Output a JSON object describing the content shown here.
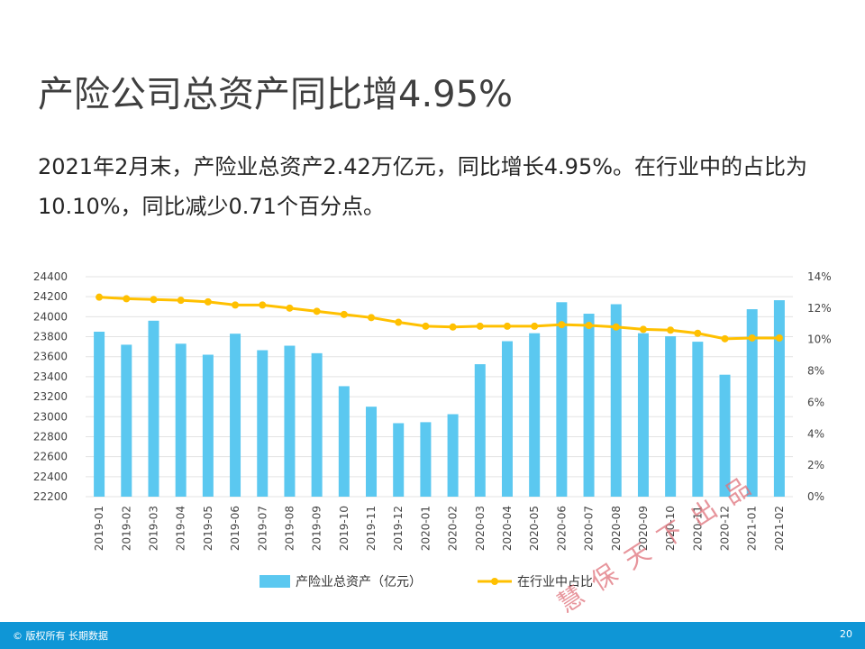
{
  "title": "产险公司总资产同比增4.95%",
  "paragraph": "2021年2月末，产险业总资产2.42万亿元，同比增长4.95%。在行业中的占比为10.10%，同比减少0.71个百分点。",
  "chart_data": {
    "type": "bar",
    "categories": [
      "2019-01",
      "2019-02",
      "2019-03",
      "2019-04",
      "2019-05",
      "2019-06",
      "2019-07",
      "2019-08",
      "2019-09",
      "2019-10",
      "2019-11",
      "2019-12",
      "2020-01",
      "2020-02",
      "2020-03",
      "2020-04",
      "2020-05",
      "2020-06",
      "2020-07",
      "2020-08",
      "2020-09",
      "2020-10",
      "2020-11",
      "2020-12",
      "2021-01",
      "2021-02"
    ],
    "series": [
      {
        "name": "产险业总资产（亿元）",
        "type": "bar",
        "axis": "left",
        "color": "#5bc8f0",
        "values": [
          23850,
          23720,
          23960,
          23730,
          23620,
          23830,
          23665,
          23710,
          23635,
          23305,
          23100,
          22935,
          22945,
          23025,
          23525,
          23755,
          23835,
          24145,
          24030,
          24125,
          23835,
          23805,
          23750,
          23420,
          24075,
          24165
        ]
      },
      {
        "name": "在行业中占比",
        "type": "line",
        "axis": "right",
        "color": "#ffc000",
        "values": [
          12.7,
          12.6,
          12.55,
          12.5,
          12.4,
          12.2,
          12.2,
          12.0,
          11.8,
          11.6,
          11.4,
          11.1,
          10.85,
          10.8,
          10.85,
          10.85,
          10.85,
          10.95,
          10.9,
          10.8,
          10.65,
          10.6,
          10.4,
          10.05,
          10.1,
          10.1
        ]
      }
    ],
    "y_left": {
      "min": 22200,
      "max": 24400,
      "step": 200
    },
    "y_right": {
      "min": 0,
      "max": 14,
      "step": 2,
      "suffix": "%"
    },
    "legend_position": "bottom",
    "grid": true
  },
  "watermark": "慧保天下出品",
  "footer": {
    "copyright": "© 版权所有 长期数据",
    "page": "20"
  }
}
